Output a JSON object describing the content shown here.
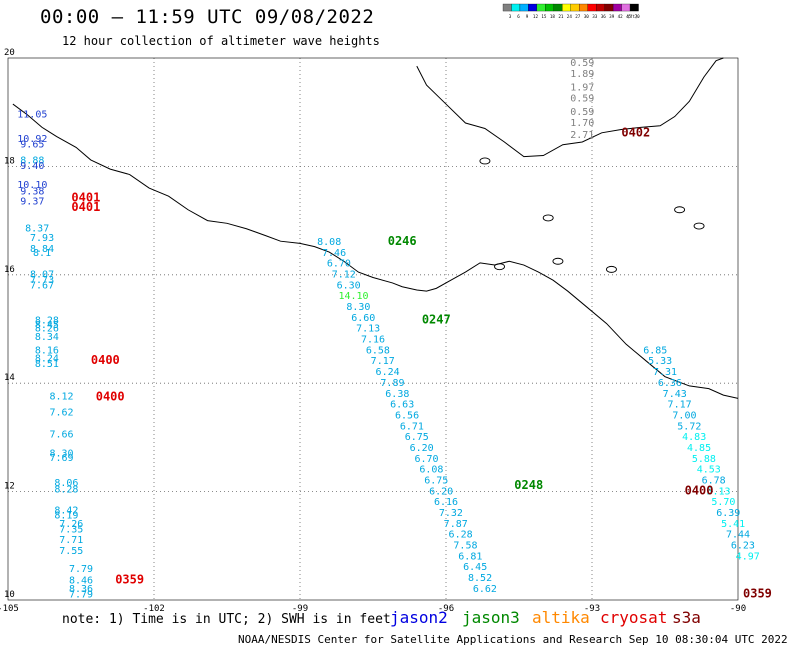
{
  "header": {
    "title": "00:00 – 11:59 UTC 09/08/2022",
    "subtitle": "12 hour collection of altimeter wave heights"
  },
  "legend": {
    "unit": "(ft)",
    "bins": [
      {
        "label": "3",
        "color": "#808080"
      },
      {
        "label": "6",
        "color": "#00f0f0"
      },
      {
        "label": "9",
        "color": "#00b0ff"
      },
      {
        "label": "12",
        "color": "#0000e0"
      },
      {
        "label": "15",
        "color": "#30f030"
      },
      {
        "label": "18",
        "color": "#00c000"
      },
      {
        "label": "21",
        "color": "#008800"
      },
      {
        "label": "24",
        "color": "#ffff00"
      },
      {
        "label": "27",
        "color": "#ffcc00"
      },
      {
        "label": "30",
        "color": "#ff8800"
      },
      {
        "label": "33",
        "color": "#ff0000"
      },
      {
        "label": "36",
        "color": "#c00000"
      },
      {
        "label": "39",
        "color": "#800000"
      },
      {
        "label": "42",
        "color": "#a000a0"
      },
      {
        "label": "45",
        "color": "#e070e0"
      },
      {
        "label": "70",
        "color": "#000000"
      }
    ]
  },
  "axes": {
    "lon_labels": [
      "-105",
      "-102",
      "-99",
      "-96",
      "-93",
      "-90"
    ],
    "lat_labels": [
      "20",
      "18",
      "16",
      "14",
      "12",
      "10"
    ],
    "lon_range": [
      -105,
      -90
    ],
    "lat_range": [
      10,
      20
    ]
  },
  "tracks": [
    {
      "time": "0401",
      "time_color": "#e00000",
      "points": [
        {
          "lon": -104.5,
          "lat": 18.9,
          "v": "11.05",
          "c": "#2040d0"
        },
        {
          "lon": -104.5,
          "lat": 18.45,
          "v": "10.92",
          "c": "#2040d0"
        },
        {
          "lon": -104.5,
          "lat": 18.35,
          "v": "9.65",
          "c": "#2040d0"
        },
        {
          "lon": -104.5,
          "lat": 18.05,
          "v": "8.88",
          "c": "#00a8e0"
        },
        {
          "lon": -104.5,
          "lat": 17.95,
          "v": "9.40",
          "c": "#2040d0"
        },
        {
          "lon": -104.5,
          "lat": 17.6,
          "v": "10.10",
          "c": "#2040d0"
        },
        {
          "lon": -104.5,
          "lat": 17.48,
          "v": "9.38",
          "c": "#2040d0"
        },
        {
          "lon": -104.5,
          "lat": 17.3,
          "v": "9.37",
          "c": "#2040d0"
        }
      ]
    },
    {
      "time": "0401",
      "time_color": "#e00000",
      "points": []
    },
    {
      "time": "0400",
      "time_color": "#e00000",
      "points": [
        {
          "lon": -104.4,
          "lat": 16.8,
          "v": "8.37",
          "c": "#00a8e0"
        },
        {
          "lon": -104.3,
          "lat": 16.62,
          "v": "7.93",
          "c": "#00a8e0"
        },
        {
          "lon": -104.3,
          "lat": 16.42,
          "v": "8.84",
          "c": "#00a8e0"
        },
        {
          "lon": -104.3,
          "lat": 16.35,
          "v": "8.1",
          "c": "#00a8e0"
        },
        {
          "lon": -104.3,
          "lat": 15.95,
          "v": "8.07",
          "c": "#00a8e0"
        },
        {
          "lon": -104.3,
          "lat": 15.85,
          "v": "7.73",
          "c": "#00a8e0"
        },
        {
          "lon": -104.3,
          "lat": 15.75,
          "v": "7.67",
          "c": "#00a8e0"
        },
        {
          "lon": -104.2,
          "lat": 15.1,
          "v": "8.28",
          "c": "#00a8e0"
        },
        {
          "lon": -104.2,
          "lat": 15.02,
          "v": "8.45",
          "c": "#00a8e0"
        },
        {
          "lon": -104.2,
          "lat": 14.95,
          "v": "8.26",
          "c": "#00a8e0"
        },
        {
          "lon": -104.2,
          "lat": 14.8,
          "v": "8.34",
          "c": "#00a8e0"
        },
        {
          "lon": -104.2,
          "lat": 14.55,
          "v": "8.16",
          "c": "#00a8e0"
        },
        {
          "lon": -104.2,
          "lat": 14.4,
          "v": "8.24",
          "c": "#00a8e0"
        },
        {
          "lon": -104.2,
          "lat": 14.3,
          "v": "8.51",
          "c": "#00a8e0"
        }
      ]
    },
    {
      "time": "0400",
      "time_color": "#e00000",
      "points": [
        {
          "lon": -103.9,
          "lat": 13.7,
          "v": "8.12",
          "c": "#00a8e0"
        },
        {
          "lon": -103.9,
          "lat": 13.4,
          "v": "7.62",
          "c": "#00a8e0"
        },
        {
          "lon": -103.9,
          "lat": 13.0,
          "v": "7.66",
          "c": "#00a8e0"
        },
        {
          "lon": -103.9,
          "lat": 12.65,
          "v": "8.30",
          "c": "#00a8e0"
        },
        {
          "lon": -103.9,
          "lat": 12.56,
          "v": "7.69",
          "c": "#00a8e0"
        },
        {
          "lon": -103.8,
          "lat": 12.1,
          "v": "8.06",
          "c": "#00a8e0"
        },
        {
          "lon": -103.8,
          "lat": 11.98,
          "v": "8.28",
          "c": "#00a8e0"
        },
        {
          "lon": -103.8,
          "lat": 11.6,
          "v": "8.42",
          "c": "#00a8e0"
        },
        {
          "lon": -103.8,
          "lat": 11.5,
          "v": "8.19",
          "c": "#00a8e0"
        },
        {
          "lon": -103.7,
          "lat": 11.35,
          "v": "7.26",
          "c": "#00a8e0"
        },
        {
          "lon": -103.7,
          "lat": 11.25,
          "v": "7.35",
          "c": "#00a8e0"
        },
        {
          "lon": -103.7,
          "lat": 11.05,
          "v": "7.71",
          "c": "#00a8e0"
        },
        {
          "lon": -103.7,
          "lat": 10.85,
          "v": "7.55",
          "c": "#00a8e0"
        }
      ]
    },
    {
      "time": "0359",
      "time_color": "#e00000",
      "points": [
        {
          "lon": -103.5,
          "lat": 10.52,
          "v": "7.79",
          "c": "#00a8e0"
        },
        {
          "lon": -103.5,
          "lat": 10.3,
          "v": "8.46",
          "c": "#00a8e0"
        },
        {
          "lon": -103.5,
          "lat": 10.15,
          "v": "8.36",
          "c": "#00a8e0"
        },
        {
          "lon": -103.5,
          "lat": 10.05,
          "v": "7.79",
          "c": "#00a8e0"
        }
      ]
    },
    {
      "time": "0246",
      "time_color": "#008800",
      "points": [
        {
          "lon": -98.4,
          "lat": 16.55,
          "v": "8.08",
          "c": "#00a8e0"
        },
        {
          "lon": -98.3,
          "lat": 16.35,
          "v": "7.46",
          "c": "#00a8e0"
        },
        {
          "lon": -98.2,
          "lat": 16.15,
          "v": "6.70",
          "c": "#00a8e0"
        },
        {
          "lon": -98.1,
          "lat": 15.95,
          "v": "7.12",
          "c": "#00a8e0"
        },
        {
          "lon": -98.0,
          "lat": 15.75,
          "v": "6.30",
          "c": "#00a8e0"
        },
        {
          "lon": -97.9,
          "lat": 15.55,
          "v": "14.10",
          "c": "#30f030"
        },
        {
          "lon": -97.8,
          "lat": 15.35,
          "v": "8.30",
          "c": "#00a8e0"
        }
      ]
    },
    {
      "time": "0247",
      "time_color": "#008800",
      "points": [
        {
          "lon": -97.7,
          "lat": 15.15,
          "v": "6.60",
          "c": "#00a8e0"
        },
        {
          "lon": -97.6,
          "lat": 14.95,
          "v": "7.13",
          "c": "#00a8e0"
        },
        {
          "lon": -97.5,
          "lat": 14.75,
          "v": "7.16",
          "c": "#00a8e0"
        },
        {
          "lon": -97.4,
          "lat": 14.55,
          "v": "6.58",
          "c": "#00a8e0"
        },
        {
          "lon": -97.3,
          "lat": 14.35,
          "v": "7.17",
          "c": "#00a8e0"
        },
        {
          "lon": -97.2,
          "lat": 14.15,
          "v": "6.24",
          "c": "#00a8e0"
        },
        {
          "lon": -97.1,
          "lat": 13.95,
          "v": "7.89",
          "c": "#00a8e0"
        },
        {
          "lon": -97.0,
          "lat": 13.75,
          "v": "6.38",
          "c": "#00a8e0"
        },
        {
          "lon": -96.9,
          "lat": 13.55,
          "v": "6.63",
          "c": "#00a8e0"
        },
        {
          "lon": -96.8,
          "lat": 13.35,
          "v": "6.56",
          "c": "#00a8e0"
        },
        {
          "lon": -96.7,
          "lat": 13.15,
          "v": "6.71",
          "c": "#00a8e0"
        },
        {
          "lon": -96.6,
          "lat": 12.95,
          "v": "6.75",
          "c": "#00a8e0"
        },
        {
          "lon": -96.5,
          "lat": 12.75,
          "v": "6.20",
          "c": "#00a8e0"
        },
        {
          "lon": -96.4,
          "lat": 12.55,
          "v": "6.70",
          "c": "#00a8e0"
        },
        {
          "lon": -96.3,
          "lat": 12.35,
          "v": "6.08",
          "c": "#00a8e0"
        },
        {
          "lon": -96.2,
          "lat": 12.15,
          "v": "6.75",
          "c": "#00a8e0"
        }
      ]
    },
    {
      "time": "0248",
      "time_color": "#008800",
      "points": [
        {
          "lon": -96.1,
          "lat": 11.95,
          "v": "6.20",
          "c": "#00a8e0"
        },
        {
          "lon": -96.0,
          "lat": 11.75,
          "v": "6.16",
          "c": "#00a8e0"
        },
        {
          "lon": -95.9,
          "lat": 11.55,
          "v": "7.32",
          "c": "#00a8e0"
        },
        {
          "lon": -95.8,
          "lat": 11.35,
          "v": "7.87",
          "c": "#00a8e0"
        },
        {
          "lon": -95.7,
          "lat": 11.15,
          "v": "6.28",
          "c": "#00a8e0"
        },
        {
          "lon": -95.6,
          "lat": 10.95,
          "v": "7.58",
          "c": "#00a8e0"
        },
        {
          "lon": -95.5,
          "lat": 10.75,
          "v": "6.81",
          "c": "#00a8e0"
        },
        {
          "lon": -95.4,
          "lat": 10.55,
          "v": "6.45",
          "c": "#00a8e0"
        },
        {
          "lon": -95.3,
          "lat": 10.35,
          "v": "8.52",
          "c": "#00a8e0"
        },
        {
          "lon": -95.2,
          "lat": 10.15,
          "v": "6.62",
          "c": "#00a8e0"
        }
      ]
    },
    {
      "time": "0400",
      "time_color": "#800000",
      "points": [
        {
          "lon": -91.7,
          "lat": 14.55,
          "v": "6.85",
          "c": "#00a8e0"
        },
        {
          "lon": -91.6,
          "lat": 14.35,
          "v": "5.33",
          "c": "#00a8e0"
        },
        {
          "lon": -91.5,
          "lat": 14.15,
          "v": "7.31",
          "c": "#00a8e0"
        },
        {
          "lon": -91.4,
          "lat": 13.95,
          "v": "6.36",
          "c": "#00a8e0"
        },
        {
          "lon": -91.3,
          "lat": 13.75,
          "v": "7.43",
          "c": "#00a8e0"
        },
        {
          "lon": -91.2,
          "lat": 13.55,
          "v": "7.17",
          "c": "#00a8e0"
        },
        {
          "lon": -91.1,
          "lat": 13.35,
          "v": "7.00",
          "c": "#00a8e0"
        },
        {
          "lon": -91.0,
          "lat": 13.15,
          "v": "5.72",
          "c": "#00a8e0"
        },
        {
          "lon": -90.9,
          "lat": 12.95,
          "v": "4.83",
          "c": "#00f0f0"
        },
        {
          "lon": -90.8,
          "lat": 12.75,
          "v": "4.85",
          "c": "#00f0f0"
        },
        {
          "lon": -90.7,
          "lat": 12.55,
          "v": "5.88",
          "c": "#00f0f0"
        },
        {
          "lon": -90.6,
          "lat": 12.35,
          "v": "4.53",
          "c": "#00f0f0"
        },
        {
          "lon": -90.5,
          "lat": 12.15,
          "v": "6.78",
          "c": "#00a8e0"
        },
        {
          "lon": -90.4,
          "lat": 11.95,
          "v": "5.13",
          "c": "#00f0f0"
        },
        {
          "lon": -90.3,
          "lat": 11.75,
          "v": "5.70",
          "c": "#00f0f0"
        },
        {
          "lon": -90.2,
          "lat": 11.55,
          "v": "6.39",
          "c": "#00a8e0"
        },
        {
          "lon": -90.1,
          "lat": 11.35,
          "v": "5.41",
          "c": "#00f0f0"
        },
        {
          "lon": -90.0,
          "lat": 11.15,
          "v": "7.44",
          "c": "#00a8e0"
        },
        {
          "lon": -89.9,
          "lat": 10.95,
          "v": "6.23",
          "c": "#00a8e0"
        },
        {
          "lon": -89.8,
          "lat": 10.75,
          "v": "4.97",
          "c": "#00f0f0"
        }
      ]
    },
    {
      "time": "0359",
      "time_color": "#800000",
      "points": []
    },
    {
      "time": "0402",
      "time_color": "#800000",
      "points": [
        {
          "lon": -93.2,
          "lat": 19.85,
          "v": "0.59",
          "c": "#808080"
        },
        {
          "lon": -93.2,
          "lat": 19.65,
          "v": "1.89",
          "c": "#808080"
        },
        {
          "lon": -93.2,
          "lat": 19.4,
          "v": "1.97",
          "c": "#808080"
        },
        {
          "lon": -93.2,
          "lat": 19.2,
          "v": "0.59",
          "c": "#808080"
        },
        {
          "lon": -93.2,
          "lat": 18.95,
          "v": "0.59",
          "c": "#808080"
        },
        {
          "lon": -93.2,
          "lat": 18.75,
          "v": "1.70",
          "c": "#808080"
        },
        {
          "lon": -93.2,
          "lat": 18.52,
          "v": "2.71",
          "c": "#808080"
        }
      ]
    }
  ],
  "footnote": "note:  1) Time is in UTC;  2) SWH is in feet",
  "missions": [
    {
      "name": "jason2",
      "color": "#0000e0"
    },
    {
      "name": "jason3",
      "color": "#008800"
    },
    {
      "name": "altika",
      "color": "#ff8800"
    },
    {
      "name": "cryosat",
      "color": "#e00000"
    },
    {
      "name": "s3a",
      "color": "#800000"
    }
  ],
  "credit": "NOAA/NESDIS Center for Satellite Applications and Research     Sep 10 08:30:04 UTC 2022"
}
